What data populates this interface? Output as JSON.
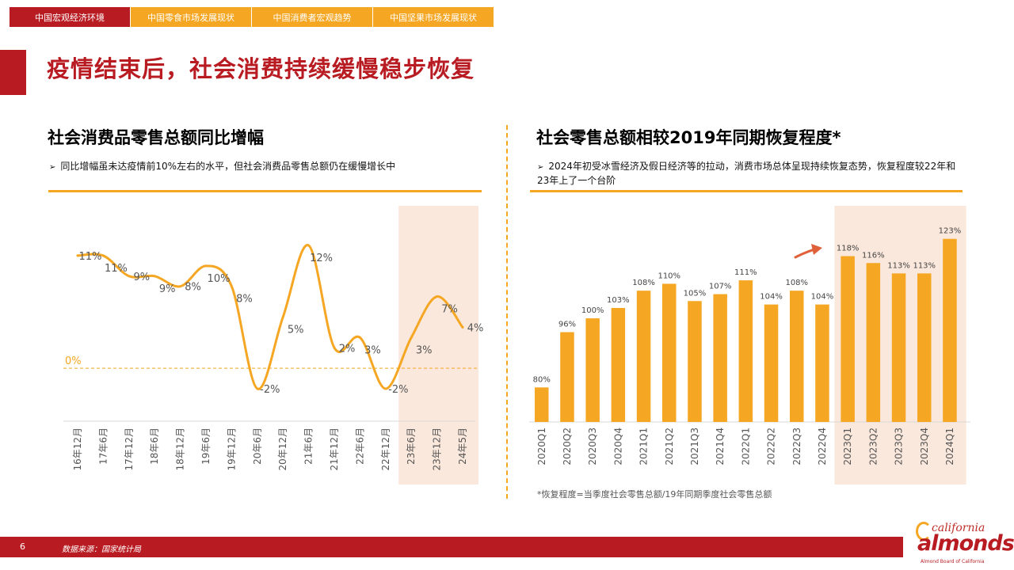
{
  "tabs": [
    {
      "label": "中国宏观经济环境",
      "active": true
    },
    {
      "label": "中国零食市场发展现状",
      "active": false
    },
    {
      "label": "中国消费者宏观趋势",
      "active": false
    },
    {
      "label": "中国坚果市场发展现状",
      "active": false
    }
  ],
  "page_title": "疫情结束后，社会消费持续缓慢稳步恢复",
  "left": {
    "title": "社会消费品零售总额同比增幅",
    "bullet": "同比增幅虽未达疫情前10%左右的水平，但社会消费品零售总额仍在缓慢增长中"
  },
  "right": {
    "title": "社会零售总额相较2019年同期恢复程度*",
    "bullet": "2024年初受冰雪经济及假日经济等的拉动，消费市场总体呈现持续恢复态势，恢复程度较22年和23年上了一个台阶",
    "footnote": "*恢复程度=当季度社会零售总额/19年同期季度社会零售总额"
  },
  "footer": {
    "page": "6",
    "source": "数据来源：国家统计局"
  },
  "logo": {
    "line1": "california",
    "line2": "almonds",
    "line3": "Almond Board of California"
  },
  "colors": {
    "accent": "#f5a623",
    "brand": "#b81c22",
    "highlight": "#fbe8dc"
  },
  "chart_data": [
    {
      "type": "line",
      "categories": [
        "16年12月",
        "17年6月",
        "17年12月",
        "18年6月",
        "18年12月",
        "19年6月",
        "19年12月",
        "20年6月",
        "20年12月",
        "21年6月",
        "21年12月",
        "22年6月",
        "22年12月",
        "23年6月",
        "23年12月",
        "24年5月"
      ],
      "values": [
        11,
        11,
        9,
        9,
        8,
        10,
        8,
        -2,
        5,
        12,
        2,
        3,
        -2,
        3,
        7,
        4
      ],
      "labels": [
        "11%",
        "11%",
        "9%",
        "9%",
        "8%",
        "10%",
        "8%",
        "-2%",
        "5%",
        "12%",
        "2%",
        "3%",
        "-2%",
        "3%",
        "7%",
        "4%"
      ],
      "reference_line": {
        "value": 0,
        "label": "0%"
      },
      "highlight_range": [
        "23年6月",
        "24年5月"
      ],
      "ylim": [
        -4,
        14
      ]
    },
    {
      "type": "bar",
      "categories": [
        "2020Q1",
        "2020Q2",
        "2020Q3",
        "2020Q4",
        "2021Q1",
        "2021Q2",
        "2021Q3",
        "2021Q4",
        "2022Q1",
        "2022Q2",
        "2022Q3",
        "2022Q4",
        "2023Q1",
        "2023Q2",
        "2023Q3",
        "2023Q4",
        "2024Q1"
      ],
      "values": [
        80,
        96,
        100,
        103,
        108,
        110,
        105,
        107,
        111,
        104,
        108,
        104,
        118,
        116,
        113,
        113,
        123
      ],
      "labels": [
        "80%",
        "96%",
        "100%",
        "103%",
        "108%",
        "110%",
        "105%",
        "107%",
        "111%",
        "104%",
        "108%",
        "104%",
        "118%",
        "116%",
        "113%",
        "113%",
        "123%"
      ],
      "highlight_range": [
        "2023Q1",
        "2024Q1"
      ],
      "ylim": [
        70,
        125
      ]
    }
  ]
}
